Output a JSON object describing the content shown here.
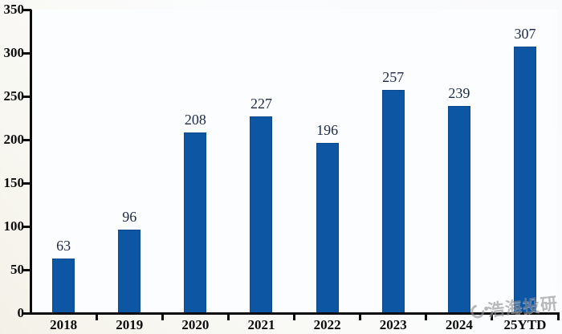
{
  "chart_data": {
    "type": "bar",
    "title": "",
    "categories": [
      "2018",
      "2019",
      "2020",
      "2021",
      "2022",
      "2023",
      "2024",
      "25YTD"
    ],
    "values": [
      63,
      96,
      208,
      227,
      196,
      257,
      239,
      307
    ],
    "xlabel": "",
    "ylabel": "",
    "ylim": [
      0,
      350
    ],
    "yticks": [
      0,
      50,
      100,
      150,
      200,
      250,
      300,
      350
    ],
    "grid": false,
    "legend": null,
    "bar_color": "#0c56a4",
    "value_label_color": "#1c2948",
    "axis_color": "#0c0c0c",
    "tick_label_color": "#0c0c0c"
  },
  "watermark": {
    "text": "浩海投研",
    "icon": "ring-logo"
  }
}
